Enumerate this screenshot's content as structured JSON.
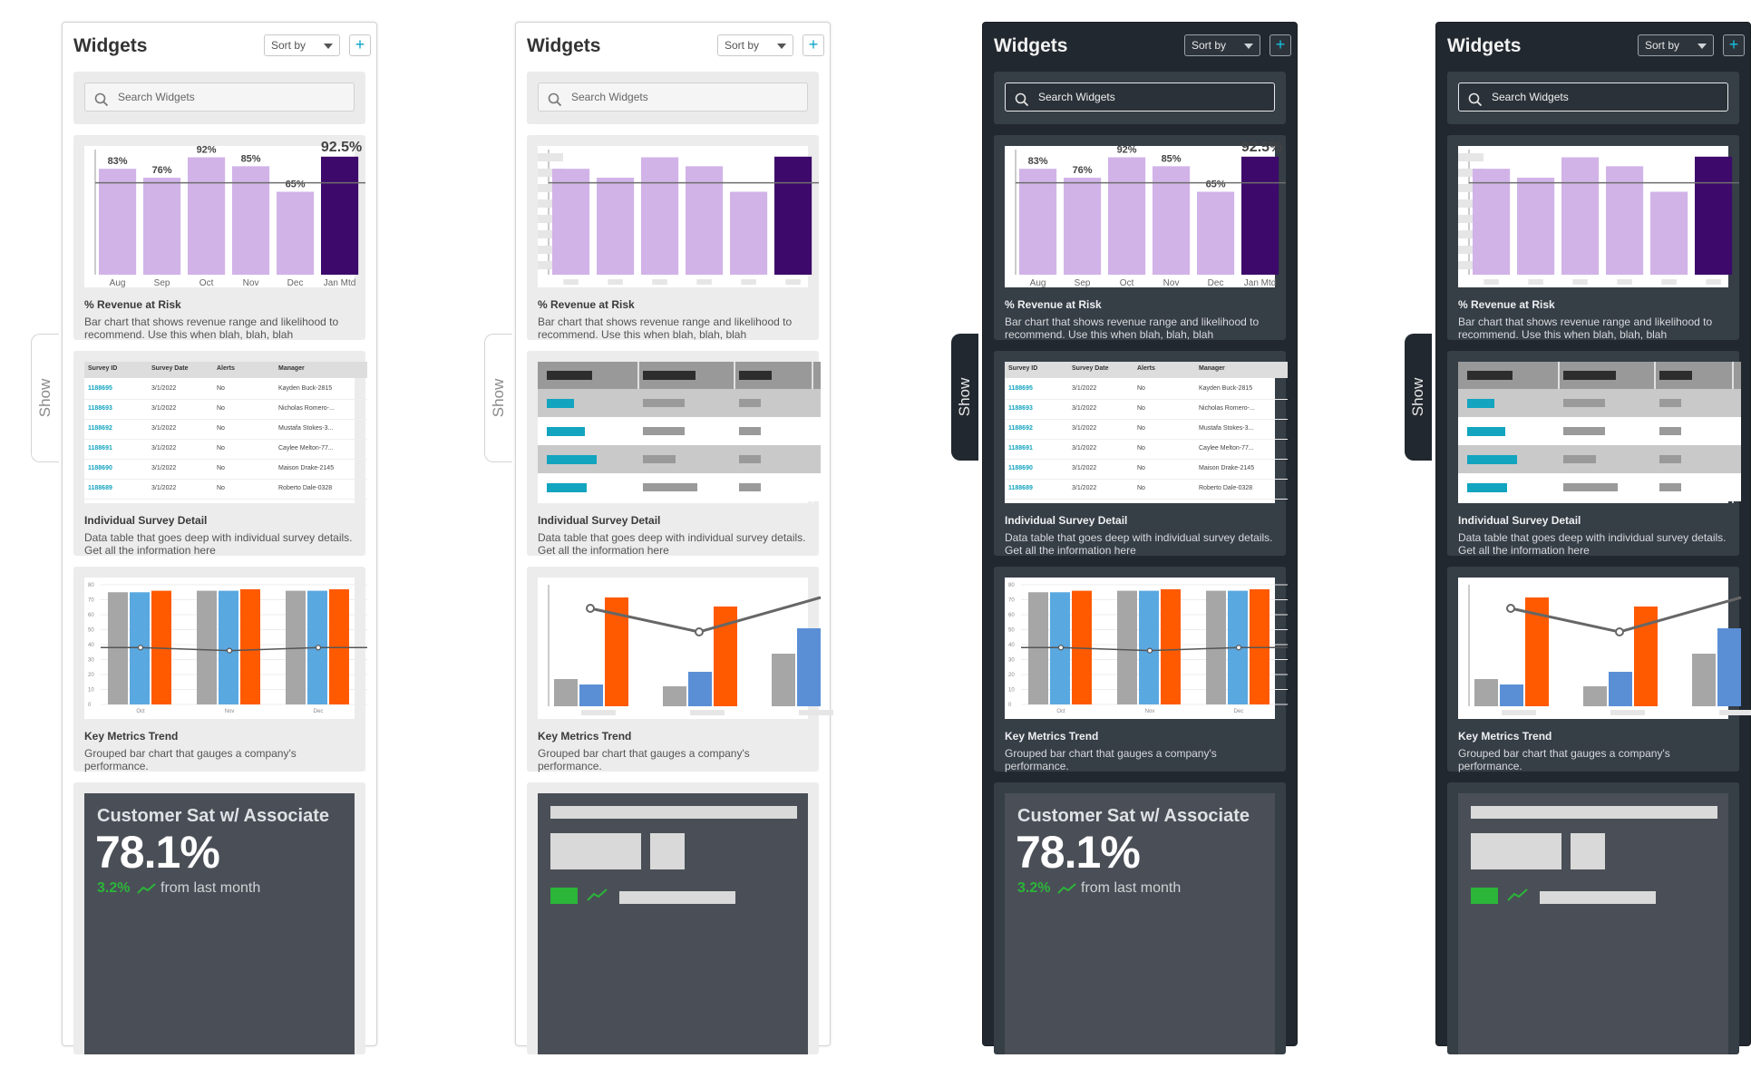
{
  "panels": [
    {
      "theme": "light",
      "show_label": "Show",
      "variant": "detailed"
    },
    {
      "theme": "light",
      "show_label": "Show",
      "variant": "skeleton"
    },
    {
      "theme": "dark",
      "show_label": "Show",
      "variant": "detailed"
    },
    {
      "theme": "dark",
      "show_label": "Show",
      "variant": "skeleton"
    }
  ],
  "header": {
    "title": "Widgets",
    "sort_label": "Sort by",
    "add_label": "+"
  },
  "search": {
    "placeholder": "Search Widgets",
    "icon": "search-icon"
  },
  "widgets": {
    "revenue": {
      "title": "% Revenue at Risk",
      "description": "Bar chart that shows revenue range and likelihood to recommend. Use this when blah, blah, blah",
      "size": "2x2"
    },
    "survey": {
      "title": "Individual Survey Detail",
      "description": "Data table that goes deep with individual survey details. Get all the information here",
      "size": "8x8"
    },
    "metrics": {
      "title": "Key Metrics Trend",
      "description": "Grouped bar chart that gauges a company's performance.",
      "size": "3x6"
    },
    "kpi": {
      "title": "Customer Sat w/ Associate",
      "value": "78.1%",
      "delta": "3.2%",
      "delta_suffix": "from last month",
      "delta_color": "#2bb539"
    }
  },
  "chart_data": [
    {
      "type": "bar",
      "title": "",
      "categories": [
        "Aug",
        "Sep",
        "Oct",
        "Nov",
        "Dec",
        "Jan Mtd"
      ],
      "values": [
        83,
        76,
        92,
        85,
        65,
        92.5
      ],
      "data_labels": [
        "83%",
        "76%",
        "92%",
        "85%",
        "65%",
        "92.5%"
      ],
      "reference_line": 72,
      "ylim": [
        0,
        100
      ],
      "colors": {
        "bar": "#d1b3e8",
        "highlight": "#3d0a6b",
        "line": "#6e6e6e"
      }
    },
    {
      "type": "table",
      "columns": [
        "Survey ID",
        "Survey Date",
        "Alerts",
        "Manager"
      ],
      "rows": [
        [
          "1188695",
          "3/1/2022",
          "No",
          "Kayden Buck-2815"
        ],
        [
          "1188693",
          "3/1/2022",
          "No",
          "Nicholas Romero-..."
        ],
        [
          "1188692",
          "3/1/2022",
          "No",
          "Mustafa Stokes-3..."
        ],
        [
          "1188691",
          "3/1/2022",
          "No",
          "Caylee Melton-77..."
        ],
        [
          "1188690",
          "3/1/2022",
          "No",
          "Maison Drake-2145"
        ],
        [
          "1188689",
          "3/1/2022",
          "No",
          "Roberto Dale-0328"
        ]
      ],
      "colors": {
        "id": "#13a4bf",
        "header": "#dddddd"
      }
    },
    {
      "type": "bar",
      "categories": [
        "Oct",
        "Nov",
        "Dec"
      ],
      "yticks": [
        "80",
        "70",
        "60",
        "50",
        "40",
        "30",
        "20",
        "10",
        "0"
      ],
      "ylim": [
        0,
        80
      ],
      "series": [
        {
          "values": [
            75,
            76,
            76
          ],
          "color": "#a6a6a6"
        },
        {
          "values": [
            75,
            76,
            76
          ],
          "color": "#5aa8e0"
        },
        {
          "values": [
            76,
            77,
            77
          ],
          "color": "#ff5a00"
        }
      ],
      "line": {
        "values": [
          38,
          36,
          38
        ],
        "color": "#555555"
      }
    }
  ]
}
